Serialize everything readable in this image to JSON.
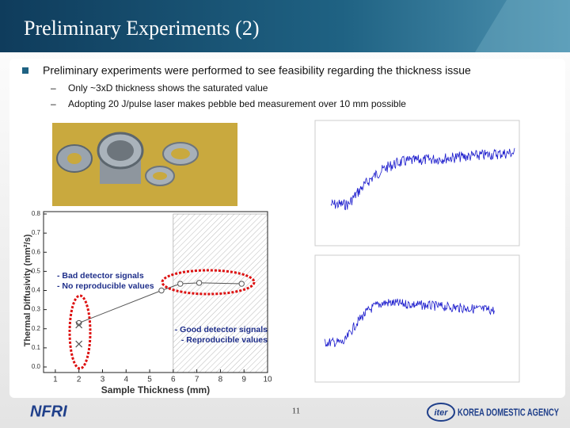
{
  "header": {
    "title": "Preliminary Experiments (2)"
  },
  "bullets": [
    {
      "text": "Preliminary experiments were performed to see feasibility regarding the thickness issue",
      "sub": [
        "Only ~3xD thickness shows the saturated value",
        "Adopting 20 J/pulse laser makes pebble bed measurement over 10 mm possible"
      ]
    }
  ],
  "sub_marker": "–",
  "figure": {
    "chart": {
      "type": "scatter",
      "xlabel": "Sample Thickness (mm)",
      "ylabel": "Thermal Diffusivity (mm²/s)",
      "xlim": [
        0.5,
        10
      ],
      "ylim": [
        0,
        0.8
      ],
      "xticks": [
        1,
        2,
        3,
        4,
        5,
        6,
        7,
        8,
        9,
        10
      ],
      "yticks": [
        {
          "value": 0,
          "label": "0.0"
        },
        0.1,
        0.2,
        0.3,
        0.4,
        0.5,
        0.6,
        0.7,
        0.8
      ],
      "saturated_from": 6,
      "series": [
        {
          "marker": "circle",
          "color": "#555555",
          "x": [
            2,
            5.5,
            6.3,
            7.1,
            8.9
          ],
          "values": [
            0.23,
            0.4,
            0.435,
            0.44,
            0.435
          ]
        },
        {
          "marker": "cross",
          "color": "#555555",
          "x": [
            2,
            2
          ],
          "values": [
            0.22,
            0.12
          ]
        }
      ],
      "annotations": [
        [
          "- Bad detector signals",
          "- No reproducible values"
        ],
        [
          "- Good detector signals",
          "- Reproducible values"
        ]
      ]
    }
  },
  "footer": {
    "left_logo": "NFRI",
    "page": "11",
    "right_logo": "iter",
    "right_text": "KOREA DOMESTIC AGENCY"
  }
}
